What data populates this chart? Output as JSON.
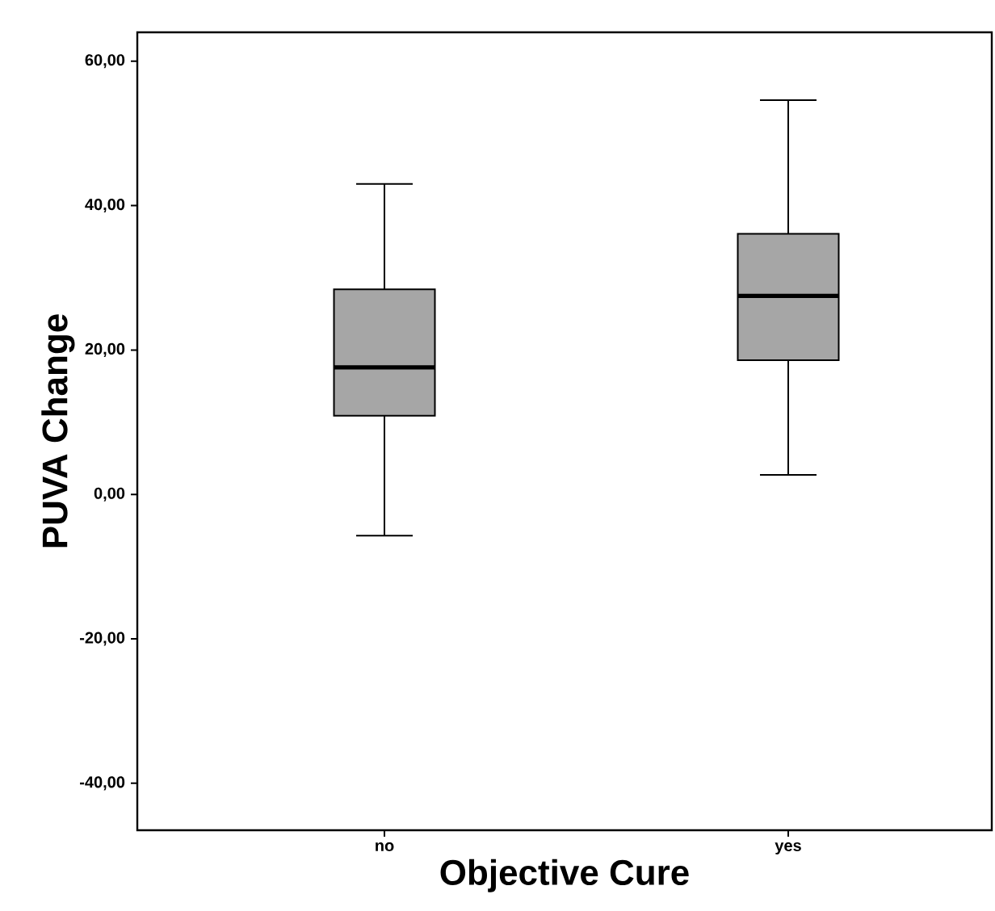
{
  "chart_data": {
    "type": "box",
    "xlabel": "Objective Cure",
    "ylabel": "PUVA Change",
    "categories": [
      "no",
      "yes"
    ],
    "boxes": [
      {
        "low": -5.7,
        "q1": 10.9,
        "median": 17.6,
        "q3": 28.4,
        "high": 43.0
      },
      {
        "low": 2.7,
        "q1": 18.6,
        "median": 27.5,
        "q3": 36.1,
        "high": 54.6
      }
    ],
    "color": "#a6a6a6",
    "ylim": [
      -46.5,
      64
    ],
    "yticks": [
      {
        "value": -40,
        "label": "-40,00"
      },
      {
        "value": -20,
        "label": "-20,00"
      },
      {
        "value": 0,
        "label": "0,00"
      },
      {
        "value": 20,
        "label": "20,00"
      },
      {
        "value": 40,
        "label": "40,00"
      },
      {
        "value": 60,
        "label": "60,00"
      }
    ],
    "grid": false
  }
}
